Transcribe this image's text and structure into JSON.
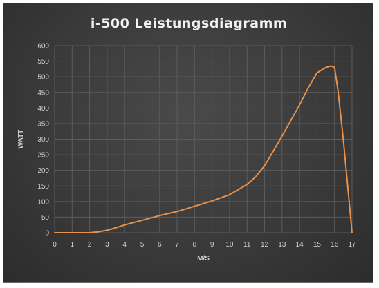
{
  "chart_data": {
    "type": "line",
    "title": "i-500 Leistungsdiagramm",
    "xlabel": "M/S",
    "ylabel": "WATT",
    "xlim": [
      0,
      17
    ],
    "ylim": [
      0,
      600
    ],
    "x_ticks": [
      "0",
      "1",
      "2",
      "3",
      "4",
      "5",
      "6",
      "7",
      "8",
      "9",
      "10",
      "11",
      "12",
      "13",
      "14",
      "15",
      "16",
      "17"
    ],
    "y_ticks": [
      "0",
      "50",
      "100",
      "150",
      "200",
      "250",
      "300",
      "350",
      "400",
      "450",
      "500",
      "550",
      "600"
    ],
    "grid": true,
    "legend": "none",
    "series": [
      {
        "color": "#e8914a",
        "x": [
          0,
          1,
          2,
          2.5,
          3,
          3.5,
          4,
          5,
          6,
          7,
          8,
          9,
          10,
          11,
          11.5,
          12,
          12.5,
          13,
          13.5,
          14,
          14.5,
          15,
          15.5,
          15.8,
          16,
          16.2,
          16.5,
          17
        ],
        "y": [
          0,
          0,
          0,
          3,
          8,
          16,
          25,
          40,
          55,
          68,
          85,
          102,
          122,
          155,
          180,
          215,
          262,
          310,
          360,
          410,
          465,
          513,
          530,
          535,
          530,
          455,
          300,
          0
        ]
      }
    ]
  }
}
